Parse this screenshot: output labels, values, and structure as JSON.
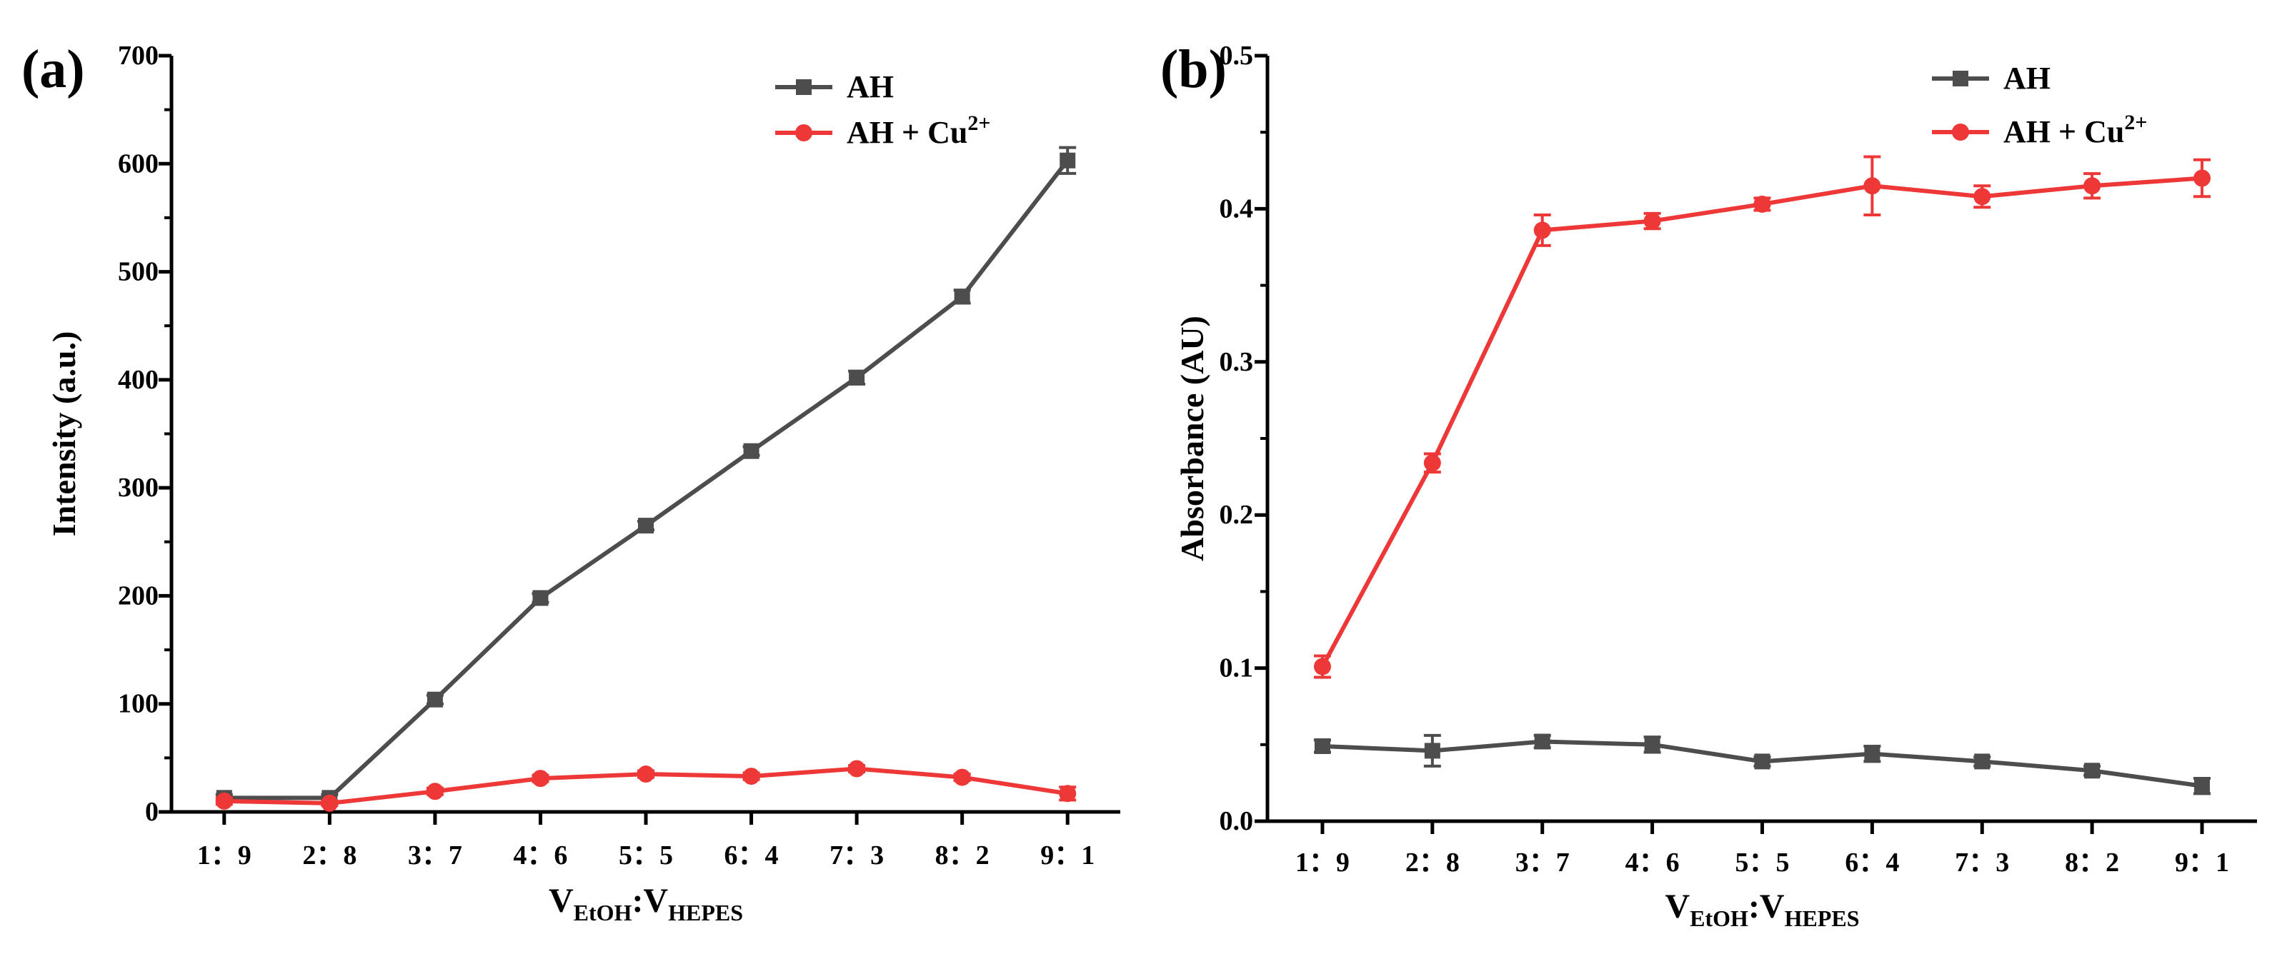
{
  "chart_data": [
    {
      "panel_label": "(a)",
      "type": "line",
      "categories": [
        "1：9",
        "2：8",
        "3：7",
        "4：6",
        "5：5",
        "6：4",
        "7：3",
        "8：2",
        "9：1"
      ],
      "ylabel": "Intensity (a.u.)",
      "xlabel": {
        "main": "V",
        "sub1": "EtOH",
        "sep": ":V",
        "sub2": "HEPES"
      },
      "ylim": [
        0,
        700
      ],
      "yticks": [
        0,
        100,
        200,
        300,
        400,
        500,
        600,
        700
      ],
      "legend_position": "top-right",
      "series": [
        {
          "name": "AH",
          "name_base": "AH",
          "name_sup": "",
          "color": "#4d4d4d",
          "marker": "square",
          "values": [
            13,
            13,
            104,
            198,
            265,
            334,
            402,
            477,
            603
          ],
          "errors": [
            3,
            3,
            4,
            4,
            4,
            4,
            6,
            6,
            12
          ]
        },
        {
          "name": "AH + Cu2+",
          "name_base": "AH + Cu",
          "name_sup": "2+",
          "color": "#ee3838",
          "marker": "circle",
          "values": [
            10,
            8,
            19,
            31,
            35,
            33,
            40,
            32,
            17
          ],
          "errors": [
            3,
            2,
            3,
            3,
            3,
            3,
            3,
            3,
            6
          ]
        }
      ]
    },
    {
      "panel_label": "(b)",
      "type": "line",
      "categories": [
        "1：9",
        "2：8",
        "3：7",
        "4：6",
        "5：5",
        "6：4",
        "7：3",
        "8：2",
        "9：1"
      ],
      "ylabel": "Absorbance (AU)",
      "xlabel": {
        "main": "V",
        "sub1": "EtOH",
        "sep": ":V",
        "sub2": "HEPES"
      },
      "ylim": [
        0,
        0.5
      ],
      "yticks": [
        "0.0",
        "0.1",
        "0.2",
        "0.3",
        "0.4",
        "0.5"
      ],
      "legend_position": "top-right",
      "series": [
        {
          "name": "AH",
          "name_base": "AH",
          "name_sup": "",
          "color": "#4d4d4d",
          "marker": "square",
          "values": [
            0.049,
            0.046,
            0.052,
            0.05,
            0.039,
            0.044,
            0.039,
            0.033,
            0.023
          ],
          "errors": [
            0.004,
            0.01,
            0.004,
            0.005,
            0.003,
            0.005,
            0.003,
            0.003,
            0.005
          ]
        },
        {
          "name": "AH + Cu2+",
          "name_base": "AH + Cu",
          "name_sup": "2+",
          "color": "#ee3838",
          "marker": "circle",
          "values": [
            0.101,
            0.234,
            0.386,
            0.392,
            0.403,
            0.415,
            0.408,
            0.415,
            0.42
          ],
          "errors": [
            0.007,
            0.006,
            0.01,
            0.005,
            0.004,
            0.019,
            0.007,
            0.008,
            0.012
          ]
        }
      ]
    }
  ]
}
